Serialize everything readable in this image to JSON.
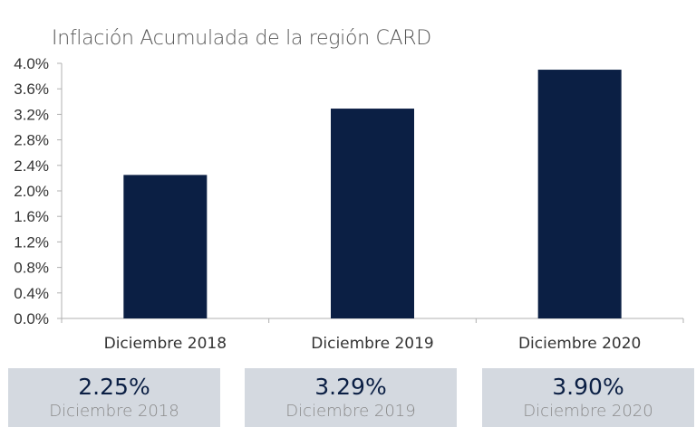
{
  "chart_data": {
    "type": "bar",
    "title": "Inflación Acumulada de la región CARD",
    "categories": [
      "Diciembre 2018",
      "Diciembre 2019",
      "Diciembre 2020"
    ],
    "values": [
      2.25,
      3.29,
      3.9
    ],
    "ylim": [
      0,
      4.0
    ],
    "yticks": [
      "0.0%",
      "0.4%",
      "0.8%",
      "1.2%",
      "1.6%",
      "2.0%",
      "2.4%",
      "2.8%",
      "3.2%",
      "3.6%",
      "4.0%"
    ],
    "bar_color": "#0b1f44",
    "grid": false
  },
  "cards": [
    {
      "value": "2.25%",
      "label": "Diciembre 2018"
    },
    {
      "value": "3.29%",
      "label": "Diciembre 2019"
    },
    {
      "value": "3.90%",
      "label": "Diciembre 2020"
    }
  ],
  "colors": {
    "card_background": "#d4d9e0",
    "card_value": "#0b1f44",
    "card_label": "#8a8a8a"
  }
}
